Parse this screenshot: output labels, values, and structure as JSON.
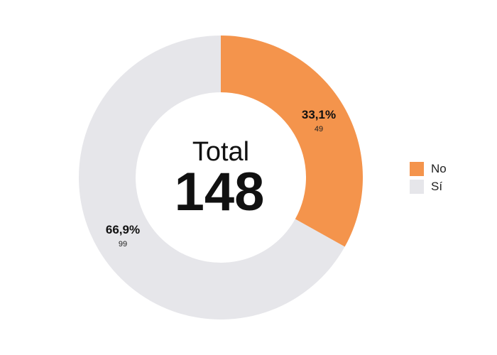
{
  "chart_data": {
    "type": "pie",
    "total": {
      "label": "Total",
      "value": "148"
    },
    "slices": [
      {
        "name": "No",
        "count": 49,
        "count_label": "49",
        "percent_label": "33,1%",
        "color": "#F4944C"
      },
      {
        "name": "Sí",
        "count": 99,
        "count_label": "99",
        "percent_label": "66,9%",
        "color": "#E6E6EA"
      }
    ],
    "legend": {
      "placement": "right",
      "items": [
        {
          "label": "No",
          "color": "#F4944C"
        },
        {
          "label": "Sí",
          "color": "#E6E6EA"
        }
      ]
    }
  }
}
